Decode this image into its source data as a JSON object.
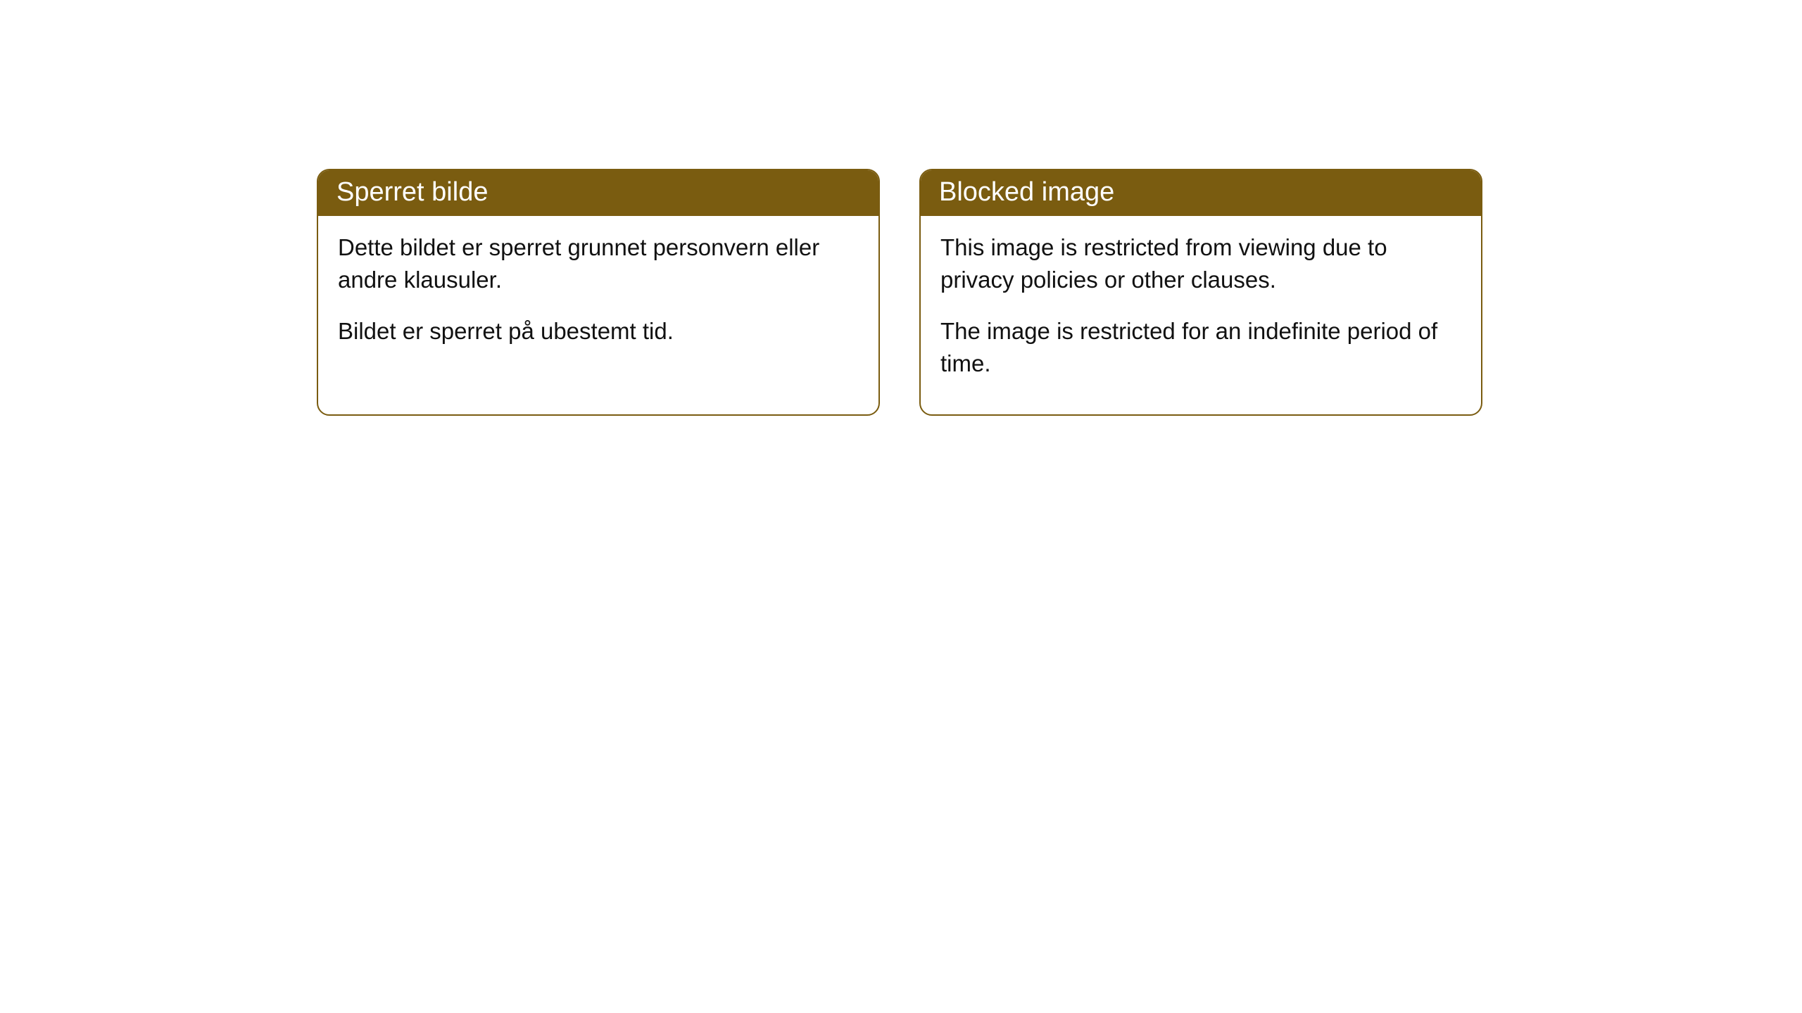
{
  "styling": {
    "header_bg_color": "#7a5c10",
    "header_text_color": "#ffffff",
    "card_border_color": "#7a5c10",
    "card_bg_color": "#ffffff",
    "body_text_color": "#111111",
    "page_bg_color": "#ffffff",
    "header_fontsize": 38,
    "body_fontsize": 33,
    "border_radius": 18
  },
  "cards": [
    {
      "title": "Sperret bilde",
      "para1": "Dette bildet er sperret grunnet personvern eller andre klausuler.",
      "para2": "Bildet er sperret på ubestemt tid."
    },
    {
      "title": "Blocked image",
      "para1": "This image is restricted from viewing due to privacy policies or other clauses.",
      "para2": "The image is restricted for an indefinite period of time."
    }
  ]
}
